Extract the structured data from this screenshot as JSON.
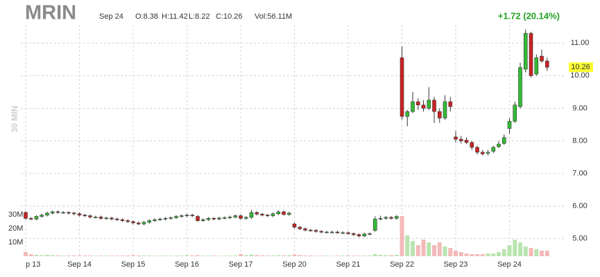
{
  "chart_data": {
    "type": "candlestick",
    "title": "MRIN",
    "info": [
      "Sep 24",
      "O:8.38",
      "H:11.42",
      "L:8.22",
      "C:10.26",
      "Vol:56.11M"
    ],
    "change": "+1.72 (20.14%)",
    "interval": "30 MIN",
    "last_price": 10.26,
    "categories": [
      "p 13",
      null,
      null,
      null,
      null,
      null,
      null,
      null,
      null,
      null,
      "Sep 14",
      null,
      null,
      null,
      null,
      null,
      null,
      null,
      null,
      null,
      "Sep 15",
      null,
      null,
      null,
      null,
      null,
      null,
      null,
      null,
      null,
      "Sep 16",
      null,
      null,
      null,
      null,
      null,
      null,
      null,
      null,
      null,
      "Sep 17",
      null,
      null,
      null,
      null,
      null,
      null,
      null,
      null,
      null,
      "Sep 20",
      null,
      null,
      null,
      null,
      null,
      null,
      null,
      null,
      null,
      "Sep 21",
      null,
      null,
      null,
      null,
      null,
      null,
      null,
      null,
      null,
      "Sep 22",
      null,
      null,
      null,
      null,
      null,
      null,
      null,
      null,
      null,
      "Sep 23",
      null,
      null,
      null,
      null,
      null,
      null,
      null,
      null,
      null,
      "Sep 24",
      null,
      null,
      null,
      null,
      null,
      null,
      null
    ],
    "open": [
      5.8,
      5.62,
      5.6,
      5.68,
      5.72,
      5.78,
      5.82,
      5.8,
      5.8,
      5.78,
      5.76,
      5.72,
      5.7,
      5.66,
      5.66,
      5.62,
      5.63,
      5.6,
      5.58,
      5.55,
      5.52,
      5.48,
      5.45,
      5.5,
      5.55,
      5.58,
      5.6,
      5.62,
      5.64,
      5.68,
      5.7,
      5.72,
      5.68,
      5.55,
      5.58,
      5.62,
      5.6,
      5.63,
      5.64,
      5.66,
      5.7,
      5.62,
      5.65,
      5.8,
      5.75,
      5.72,
      5.7,
      5.76,
      5.82,
      5.74,
      5.45,
      5.35,
      5.3,
      5.26,
      5.25,
      5.22,
      5.2,
      5.2,
      5.2,
      5.18,
      5.18,
      5.15,
      5.12,
      5.08,
      5.14,
      5.25,
      5.6,
      5.62,
      5.65,
      5.62,
      10.55,
      8.75,
      8.9,
      9.2,
      9.1,
      9.0,
      9.25,
      8.9,
      8.7,
      9.2,
      8.12,
      8.05,
      8.02,
      7.95,
      7.8,
      7.65,
      7.62,
      7.68,
      7.82,
      7.92,
      8.38,
      8.6,
      9.05,
      10.2,
      11.3,
      10.05,
      10.6,
      10.45
    ],
    "high": [
      5.84,
      5.66,
      5.72,
      5.76,
      5.82,
      5.86,
      5.86,
      5.84,
      5.84,
      5.82,
      5.8,
      5.76,
      5.74,
      5.7,
      5.7,
      5.67,
      5.67,
      5.64,
      5.62,
      5.59,
      5.56,
      5.52,
      5.54,
      5.59,
      5.62,
      5.64,
      5.66,
      5.68,
      5.72,
      5.74,
      5.76,
      5.76,
      5.72,
      5.62,
      5.66,
      5.66,
      5.67,
      5.68,
      5.7,
      5.74,
      5.74,
      5.69,
      5.88,
      5.84,
      5.79,
      5.76,
      5.8,
      5.86,
      5.86,
      5.82,
      5.49,
      5.39,
      5.34,
      5.3,
      5.29,
      5.26,
      5.24,
      5.24,
      5.24,
      5.22,
      5.22,
      5.19,
      5.16,
      5.18,
      5.19,
      5.68,
      5.7,
      5.69,
      5.69,
      5.72,
      10.9,
      8.95,
      9.5,
      9.3,
      9.25,
      9.65,
      9.35,
      9.0,
      9.4,
      9.35,
      8.3,
      8.15,
      8.1,
      8.0,
      7.85,
      7.72,
      7.72,
      7.85,
      8.0,
      8.2,
      8.7,
      9.2,
      10.4,
      11.42,
      11.35,
      10.65,
      10.8,
      10.55
    ],
    "low": [
      5.58,
      5.56,
      5.56,
      5.64,
      5.68,
      5.74,
      5.76,
      5.76,
      5.74,
      5.72,
      5.68,
      5.66,
      5.62,
      5.62,
      5.58,
      5.58,
      5.56,
      5.54,
      5.51,
      5.48,
      5.44,
      5.41,
      5.41,
      5.46,
      5.51,
      5.54,
      5.56,
      5.58,
      5.6,
      5.64,
      5.66,
      5.66,
      5.51,
      5.51,
      5.54,
      5.56,
      5.56,
      5.59,
      5.6,
      5.62,
      5.58,
      5.58,
      5.61,
      5.71,
      5.68,
      5.66,
      5.66,
      5.72,
      5.7,
      5.7,
      5.31,
      5.26,
      5.22,
      5.21,
      5.18,
      5.16,
      5.16,
      5.16,
      5.14,
      5.14,
      5.11,
      5.08,
      5.04,
      5.04,
      5.1,
      5.21,
      5.56,
      5.58,
      5.58,
      5.58,
      8.65,
      8.45,
      8.85,
      8.95,
      8.9,
      8.95,
      8.55,
      8.55,
      8.65,
      8.9,
      7.95,
      7.92,
      7.9,
      7.72,
      7.58,
      7.55,
      7.55,
      7.62,
      7.78,
      7.88,
      8.22,
      8.55,
      9.0,
      10.1,
      9.95,
      10.0,
      10.4,
      10.15
    ],
    "close": [
      5.62,
      5.6,
      5.68,
      5.72,
      5.78,
      5.82,
      5.8,
      5.8,
      5.78,
      5.76,
      5.72,
      5.7,
      5.66,
      5.66,
      5.62,
      5.63,
      5.6,
      5.58,
      5.55,
      5.52,
      5.48,
      5.45,
      5.5,
      5.55,
      5.58,
      5.6,
      5.62,
      5.64,
      5.68,
      5.7,
      5.72,
      5.7,
      5.55,
      5.58,
      5.62,
      5.6,
      5.63,
      5.64,
      5.66,
      5.7,
      5.62,
      5.65,
      5.8,
      5.75,
      5.72,
      5.7,
      5.76,
      5.82,
      5.74,
      5.78,
      5.35,
      5.3,
      5.26,
      5.25,
      5.22,
      5.2,
      5.2,
      5.2,
      5.18,
      5.18,
      5.15,
      5.12,
      5.08,
      5.14,
      5.15,
      5.6,
      5.62,
      5.65,
      5.62,
      5.68,
      8.75,
      8.9,
      9.2,
      9.1,
      9.0,
      9.25,
      8.9,
      8.7,
      9.2,
      9.05,
      8.05,
      8.0,
      7.95,
      7.8,
      7.65,
      7.6,
      7.65,
      7.8,
      7.9,
      8.1,
      8.6,
      9.1,
      10.25,
      11.3,
      10.0,
      10.55,
      10.45,
      10.26
    ],
    "volume": [
      3,
      1.5,
      1,
      0.8,
      1,
      0.8,
      0.6,
      0.5,
      0.5,
      0.6,
      0.6,
      0.5,
      0.5,
      0.4,
      0.5,
      0.4,
      0.5,
      0.4,
      0.5,
      0.6,
      0.8,
      0.6,
      0.5,
      0.5,
      0.4,
      0.4,
      0.5,
      0.4,
      0.5,
      0.5,
      0.8,
      0.6,
      0.7,
      0.5,
      0.4,
      0.5,
      0.4,
      0.4,
      0.5,
      0.6,
      1.5,
      0.8,
      1.2,
      0.8,
      0.6,
      0.5,
      0.6,
      0.7,
      0.6,
      0.8,
      1.2,
      0.8,
      0.6,
      0.5,
      0.4,
      0.4,
      0.4,
      0.4,
      0.4,
      0.5,
      0.5,
      0.4,
      0.4,
      0.5,
      0.6,
      1.5,
      1.0,
      0.8,
      0.8,
      1.0,
      29,
      15,
      11,
      8,
      12,
      10,
      8,
      10,
      7,
      6,
      4,
      3,
      2,
      1.5,
      1.5,
      1.5,
      2,
      2,
      3,
      5,
      8,
      12,
      10,
      7,
      6,
      5,
      4,
      4
    ],
    "ylim": [
      4.5,
      11.75
    ],
    "yticks": [
      {
        "value": 5,
        "label": "5.00"
      },
      {
        "value": 6,
        "label": "6.00"
      },
      {
        "value": 7,
        "label": "7.00"
      },
      {
        "value": 8,
        "label": "8.00"
      },
      {
        "value": 9,
        "label": "9.00"
      },
      {
        "value": 10,
        "label": "10.00"
      },
      {
        "value": 11,
        "label": "11.00"
      }
    ],
    "y2lim": [
      0,
      30
    ],
    "y2ticks": [
      {
        "value": 10,
        "label": "10M"
      },
      {
        "value": 20,
        "label": "20M"
      },
      {
        "value": 30,
        "label": "30M"
      }
    ],
    "grid": true,
    "up_color": "#33bb33",
    "down_color": "#cc2222",
    "volume_up_color": "#b9e4b0",
    "volume_down_color": "#f4b9b9",
    "change_color": "#22a022",
    "last_price_color": "#ffff33"
  }
}
